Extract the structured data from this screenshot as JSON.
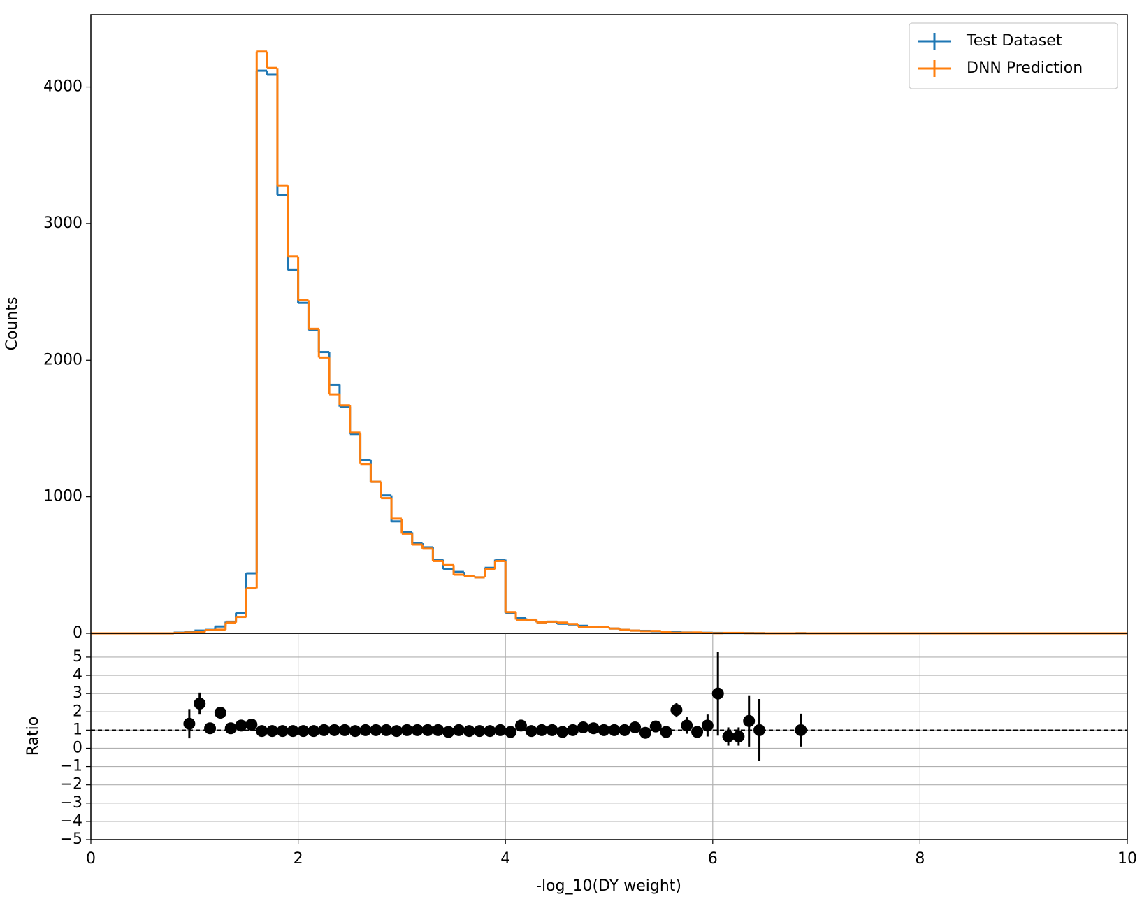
{
  "chart_data": [
    {
      "type": "histogram",
      "ylabel": "Counts",
      "legend": "upper right",
      "bins": [
        0.0,
        0.1,
        0.2,
        0.3,
        0.4,
        0.5,
        0.6,
        0.7,
        0.8,
        0.9,
        1.0,
        1.1,
        1.2,
        1.3,
        1.4,
        1.5,
        1.6,
        1.7,
        1.8,
        1.9,
        2.0,
        2.1,
        2.2,
        2.3,
        2.4,
        2.5,
        2.6,
        2.7,
        2.8,
        2.9,
        3.0,
        3.1,
        3.2,
        3.3,
        3.4,
        3.5,
        3.6,
        3.7,
        3.8,
        3.9,
        4.0,
        4.1,
        4.2,
        4.3,
        4.4,
        4.5,
        4.6,
        4.7,
        4.8,
        4.9,
        5.0,
        5.1,
        5.2,
        5.3,
        5.4,
        5.5,
        5.6,
        5.7,
        5.8,
        5.9,
        6.0,
        6.1,
        6.2,
        6.3,
        6.4,
        6.5,
        6.6,
        6.7,
        6.8,
        6.9,
        7.0,
        7.1,
        7.2,
        7.3,
        7.4,
        7.5,
        7.6,
        7.7,
        7.8,
        7.9,
        8.0,
        8.1,
        8.2,
        8.3,
        8.4,
        8.5,
        8.6,
        8.7,
        8.8,
        8.9,
        9.0,
        9.1,
        9.2,
        9.3,
        9.4,
        9.5,
        9.6,
        9.7,
        9.8,
        9.9,
        10.0
      ],
      "xlim": [
        0,
        10
      ],
      "ylim": [
        0,
        4530
      ],
      "yticks": [
        0,
        1000,
        2000,
        3000,
        4000
      ],
      "series": [
        {
          "name": "Test Dataset",
          "color": "#1f77b4",
          "values": [
            0,
            0,
            0,
            0,
            0,
            0,
            0,
            0,
            5,
            8,
            20,
            25,
            50,
            85,
            150,
            440,
            4120,
            4090,
            3210,
            2660,
            2420,
            2220,
            2060,
            1820,
            1660,
            1460,
            1270,
            1110,
            1010,
            820,
            740,
            660,
            630,
            540,
            470,
            450,
            420,
            410,
            480,
            540,
            150,
            110,
            95,
            80,
            85,
            70,
            65,
            55,
            48,
            45,
            35,
            25,
            20,
            18,
            15,
            10,
            8,
            6,
            5,
            4,
            3,
            2,
            2,
            2,
            1,
            0,
            0,
            0,
            1,
            0,
            0,
            0,
            0,
            0,
            0,
            0,
            0,
            0,
            0,
            0,
            0,
            0,
            0,
            0,
            0,
            0,
            0,
            0,
            0,
            0,
            0,
            0,
            0,
            0,
            0,
            0,
            0,
            0,
            0,
            0
          ]
        },
        {
          "name": "DNN Prediction",
          "color": "#ff7f0e",
          "values": [
            0,
            0,
            0,
            0,
            0,
            0,
            0,
            0,
            3,
            6,
            8,
            23,
            26,
            78,
            120,
            330,
            4260,
            4140,
            3280,
            2760,
            2440,
            2230,
            2020,
            1750,
            1670,
            1470,
            1240,
            1110,
            990,
            840,
            730,
            650,
            620,
            530,
            500,
            430,
            420,
            410,
            470,
            530,
            155,
            100,
            100,
            80,
            85,
            78,
            68,
            48,
            47,
            46,
            35,
            25,
            20,
            16,
            17,
            11,
            4,
            5,
            6,
            3,
            1,
            3,
            3,
            1,
            1,
            0,
            0,
            0,
            1,
            0,
            0,
            0,
            0,
            0,
            0,
            0,
            0,
            0,
            0,
            0,
            0,
            0,
            0,
            0,
            0,
            0,
            0,
            0,
            0,
            0,
            0,
            0,
            0,
            0,
            0,
            0,
            0,
            0,
            0,
            0
          ]
        }
      ]
    },
    {
      "type": "errorbar",
      "xlabel": "-log_10(DY weight)",
      "ylabel": "Ratio",
      "color": "#000000",
      "grid": true,
      "hline": 1,
      "xlim": [
        0,
        10
      ],
      "xticks": [
        0,
        2,
        4,
        6,
        8,
        10
      ],
      "ylim": [
        -5,
        6.3
      ],
      "yticks": [
        {
          "value": -5,
          "label": "−5"
        },
        {
          "value": -4,
          "label": "−4"
        },
        {
          "value": -3,
          "label": "−3"
        },
        {
          "value": -2,
          "label": "−2"
        },
        {
          "value": -1,
          "label": "−1"
        },
        0,
        1,
        2,
        3,
        4,
        5
      ],
      "x": [
        0.95,
        1.05,
        1.15,
        1.25,
        1.35,
        1.45,
        1.55,
        1.65,
        1.75,
        1.85,
        1.95,
        2.05,
        2.15,
        2.25,
        2.35,
        2.45,
        2.55,
        2.65,
        2.75,
        2.85,
        2.95,
        3.05,
        3.15,
        3.25,
        3.35,
        3.45,
        3.55,
        3.65,
        3.75,
        3.85,
        3.95,
        4.05,
        4.15,
        4.25,
        4.35,
        4.45,
        4.55,
        4.65,
        4.75,
        4.85,
        4.95,
        5.05,
        5.15,
        5.25,
        5.35,
        5.45,
        5.55,
        5.65,
        5.75,
        5.85,
        5.95,
        6.05,
        6.15,
        6.25,
        6.35,
        6.45,
        6.85
      ],
      "values": [
        1.35,
        2.45,
        1.1,
        1.95,
        1.1,
        1.25,
        1.3,
        0.95,
        0.95,
        0.95,
        0.95,
        0.95,
        0.95,
        1.0,
        1.0,
        1.0,
        0.95,
        1.0,
        1.0,
        1.0,
        0.95,
        1.0,
        1.0,
        1.0,
        1.0,
        0.9,
        1.0,
        0.95,
        0.95,
        0.95,
        1.0,
        0.9,
        1.25,
        0.95,
        1.0,
        1.0,
        0.9,
        1.0,
        1.15,
        1.1,
        1.0,
        1.0,
        1.0,
        1.15,
        0.85,
        1.2,
        0.9,
        2.1,
        1.25,
        0.9,
        1.25,
        3.0,
        0.65,
        0.65,
        1.5,
        1.0,
        1.0
      ],
      "errors": [
        0.8,
        0.6,
        0.15,
        0.15,
        0.1,
        0.1,
        0.1,
        0.1,
        0.1,
        0.1,
        0.1,
        0.1,
        0.1,
        0.1,
        0.1,
        0.1,
        0.1,
        0.1,
        0.1,
        0.1,
        0.1,
        0.1,
        0.1,
        0.1,
        0.1,
        0.1,
        0.1,
        0.1,
        0.1,
        0.1,
        0.1,
        0.1,
        0.1,
        0.1,
        0.1,
        0.1,
        0.1,
        0.1,
        0.1,
        0.1,
        0.1,
        0.1,
        0.1,
        0.1,
        0.1,
        0.1,
        0.1,
        0.4,
        0.45,
        0.2,
        0.6,
        2.3,
        0.5,
        0.5,
        1.4,
        1.7,
        0.9
      ]
    }
  ]
}
